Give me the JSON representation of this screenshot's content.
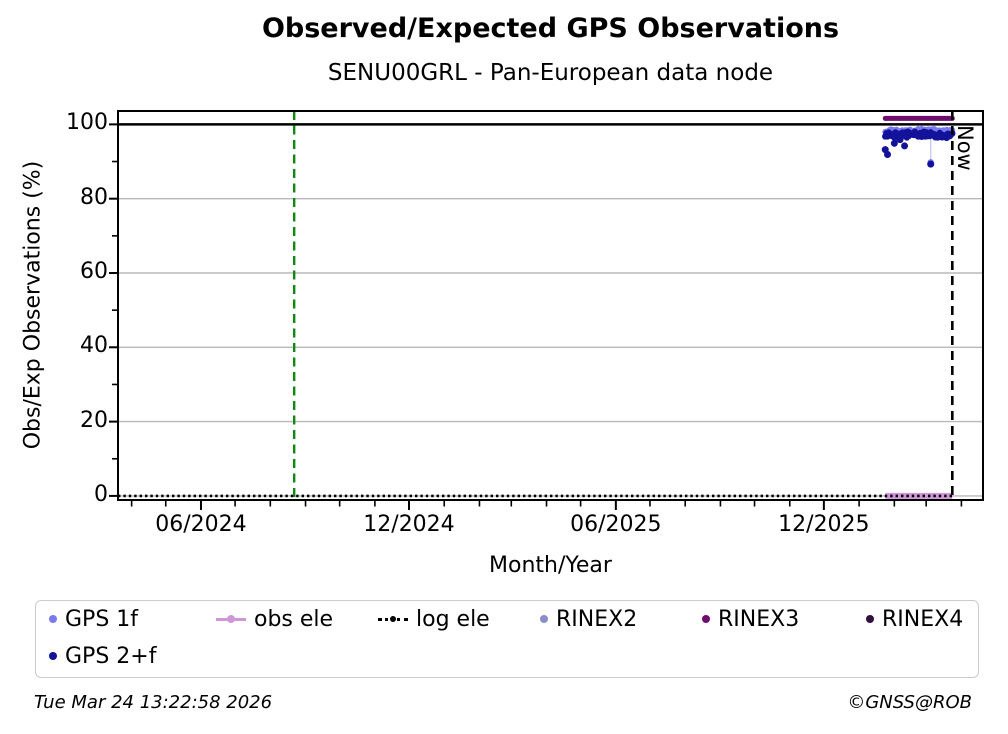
{
  "chart_data": {
    "type": "scatter",
    "title": "Observed/Expected GPS Observations",
    "subtitle": "SENU00GRL - Pan-European data node",
    "xlabel": "Month/Year",
    "ylabel": "Obs/Exp Observations (%)",
    "x_domain": [
      "2024-03-20",
      "2026-04-20"
    ],
    "ylim": [
      -1.1,
      103.6
    ],
    "grid": true,
    "y_ticks": [
      {
        "value": 0,
        "label": "0"
      },
      {
        "value": 20,
        "label": "20"
      },
      {
        "value": 40,
        "label": "40"
      },
      {
        "value": 60,
        "label": "60"
      },
      {
        "value": 80,
        "label": "80"
      },
      {
        "value": 100,
        "label": "100"
      }
    ],
    "y_minor_ticks": [
      10,
      30,
      50,
      70,
      90
    ],
    "y_gridlines": [
      0,
      20,
      40,
      60,
      80
    ],
    "x_ticks": [
      {
        "date": "2024-06-01",
        "label": "06/2024"
      },
      {
        "date": "2024-12-01",
        "label": "12/2024"
      },
      {
        "date": "2025-06-01",
        "label": "06/2025"
      },
      {
        "date": "2025-12-01",
        "label": "12/2025"
      }
    ],
    "x_minor_tick_interval": "month",
    "reference_lines": {
      "full_line_100": {
        "value": 100,
        "color": "#000000"
      },
      "station_marker": {
        "date": "2024-08-22",
        "color": "#118811",
        "style": "dashed"
      },
      "now": {
        "date": "2026-03-24",
        "label": "Now",
        "color": "#000000",
        "style": "dashed"
      }
    },
    "series": [
      {
        "name": "GPS 1f",
        "color": "#7a7aee",
        "legend_marker": "dot",
        "dot_radius": 2.9,
        "run": {
          "start": "2026-01-24",
          "end": "2026-03-24",
          "value": 98.3,
          "jitter": 0.55,
          "seed": 11
        },
        "extra_points": [
          {
            "date": "2026-03-05",
            "value": 89.8
          }
        ],
        "segments": [
          {
            "x": "2026-03-05",
            "y1": 97.5,
            "y2": 89.8,
            "color": "#c9cdf2",
            "width": 1.4
          }
        ]
      },
      {
        "name": "obs ele",
        "color": "#cf97d8",
        "legend_marker": "line-dot",
        "run_line": {
          "start": "2026-01-24",
          "end": "2026-03-24",
          "value": 0,
          "width": 6,
          "cap": "butt"
        }
      },
      {
        "name": "log ele",
        "color": "#000000",
        "legend_marker": "dotted-dot",
        "run_line": {
          "start": "2024-03-20",
          "end": "2026-03-24",
          "value": 0,
          "width": 2.6,
          "dash": "2.4 3",
          "cap": "butt"
        }
      },
      {
        "name": "RINEX2",
        "color": "#8a8ccc",
        "legend_marker": "dot"
      },
      {
        "name": "RINEX3",
        "color": "#6e0d6e",
        "legend_marker": "dot",
        "run_line": {
          "start": "2026-01-24",
          "end": "2026-03-24",
          "value": 101.6,
          "width": 5,
          "cap": "round"
        }
      },
      {
        "name": "RINEX4",
        "color": "#31103c",
        "legend_marker": "dot"
      },
      {
        "name": "GPS 2+f",
        "color": "#12129b",
        "legend_marker": "dot",
        "dot_radius": 3.2,
        "run": {
          "start": "2026-01-24",
          "end": "2026-03-24",
          "value": 97.2,
          "jitter": 0.85,
          "seed": 5
        },
        "extra_points": [
          {
            "date": "2026-01-24",
            "value": 93.2
          },
          {
            "date": "2026-01-26",
            "value": 91.9
          },
          {
            "date": "2026-02-01",
            "value": 94.9
          },
          {
            "date": "2026-02-06",
            "value": 95.9
          },
          {
            "date": "2026-02-10",
            "value": 94.2
          },
          {
            "date": "2026-03-05",
            "value": 89.3
          }
        ]
      }
    ],
    "legend_layout": {
      "row0_count": 6
    }
  },
  "footer": {
    "timestamp": "Tue Mar 24 13:22:58 2026",
    "copyright": "©GNSS@ROB"
  }
}
